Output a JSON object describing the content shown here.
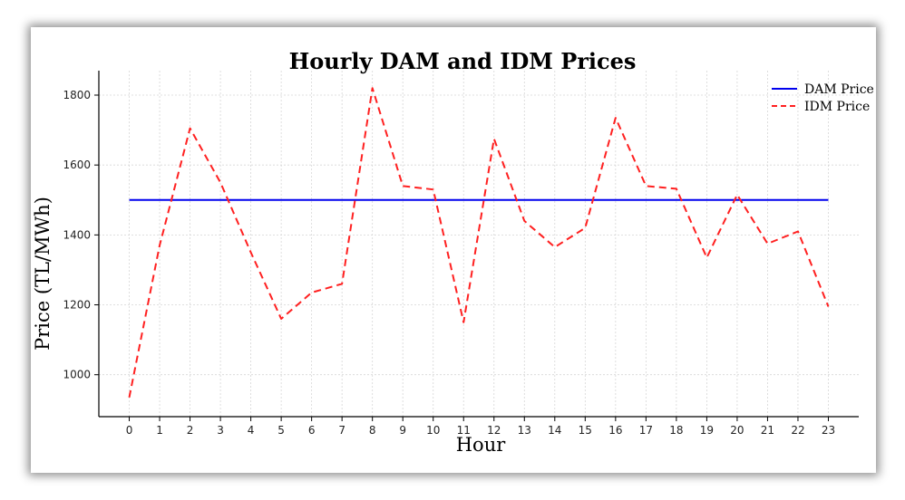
{
  "chart_data": {
    "type": "line",
    "title": "Hourly DAM and IDM Prices",
    "xlabel": "Hour",
    "ylabel": "Price (TL/MWh)",
    "x": [
      0,
      1,
      2,
      3,
      4,
      5,
      6,
      7,
      8,
      9,
      10,
      11,
      12,
      13,
      14,
      15,
      16,
      17,
      18,
      19,
      20,
      21,
      22,
      23
    ],
    "xlim": [
      -1,
      24
    ],
    "ylim": [
      880,
      1870
    ],
    "yticks": [
      1000,
      1200,
      1400,
      1600,
      1800
    ],
    "grid": true,
    "legend_position": "top-right",
    "series": [
      {
        "name": "DAM Price",
        "color": "#0000ee",
        "style": "solid",
        "values": [
          1500,
          1500,
          1500,
          1500,
          1500,
          1500,
          1500,
          1500,
          1500,
          1500,
          1500,
          1500,
          1500,
          1500,
          1500,
          1500,
          1500,
          1500,
          1500,
          1500,
          1500,
          1500,
          1500,
          1500
        ]
      },
      {
        "name": "IDM Price",
        "color": "#ff2020",
        "style": "dashed",
        "values": [
          935,
          1370,
          1705,
          1550,
          1350,
          1160,
          1235,
          1260,
          1820,
          1540,
          1530,
          1150,
          1675,
          1440,
          1365,
          1420,
          1735,
          1540,
          1532,
          1335,
          1515,
          1375,
          1410,
          1195
        ]
      }
    ]
  }
}
